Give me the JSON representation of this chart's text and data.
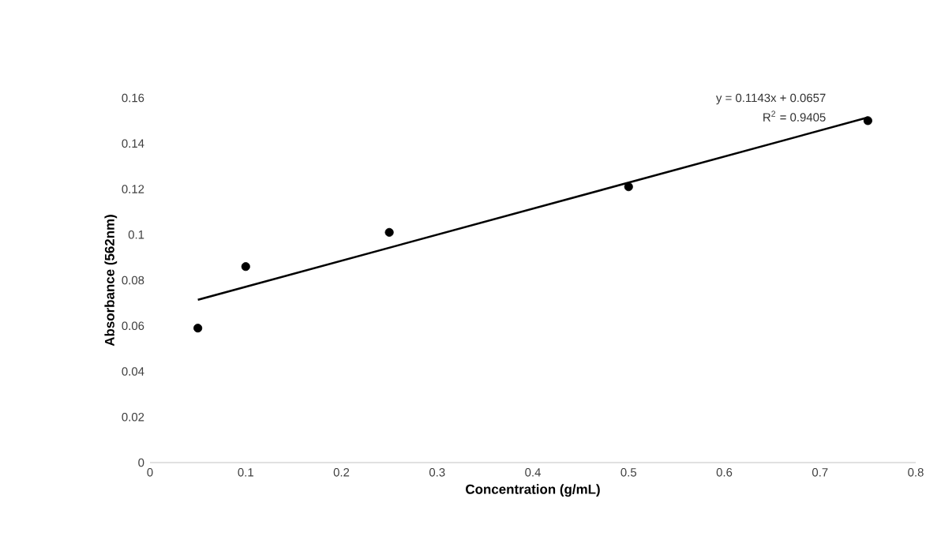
{
  "chart_data": {
    "type": "scatter",
    "xlabel": "Concentration (g/mL)",
    "ylabel": "Absorbance (562nm)",
    "series": [
      {
        "color": "#000000",
        "marker": "circle",
        "x": [
          0.05,
          0.1,
          0.25,
          0.5,
          0.75
        ],
        "values": [
          0.059,
          0.086,
          0.101,
          0.121,
          0.15
        ]
      },
      {
        "type": "line",
        "color": "#000000",
        "marker": "none",
        "line_style": "solid",
        "x": [
          0.05,
          0.75
        ],
        "values": [
          0.0714,
          0.1514
        ]
      }
    ],
    "annotations": [
      "y = 0.1143x + 0.0657",
      "R$^{2}$ = 0.9405"
    ],
    "xlim": [
      0,
      0.8
    ],
    "xticks": [
      0,
      0.1,
      0.2,
      0.3,
      0.4,
      0.5,
      0.6,
      0.7,
      0.8
    ],
    "ylim": [
      0,
      0.16
    ],
    "yticks": [
      0,
      0.02,
      0.04,
      0.06,
      0.08,
      0.1,
      0.12,
      0.14,
      0.16
    ]
  }
}
